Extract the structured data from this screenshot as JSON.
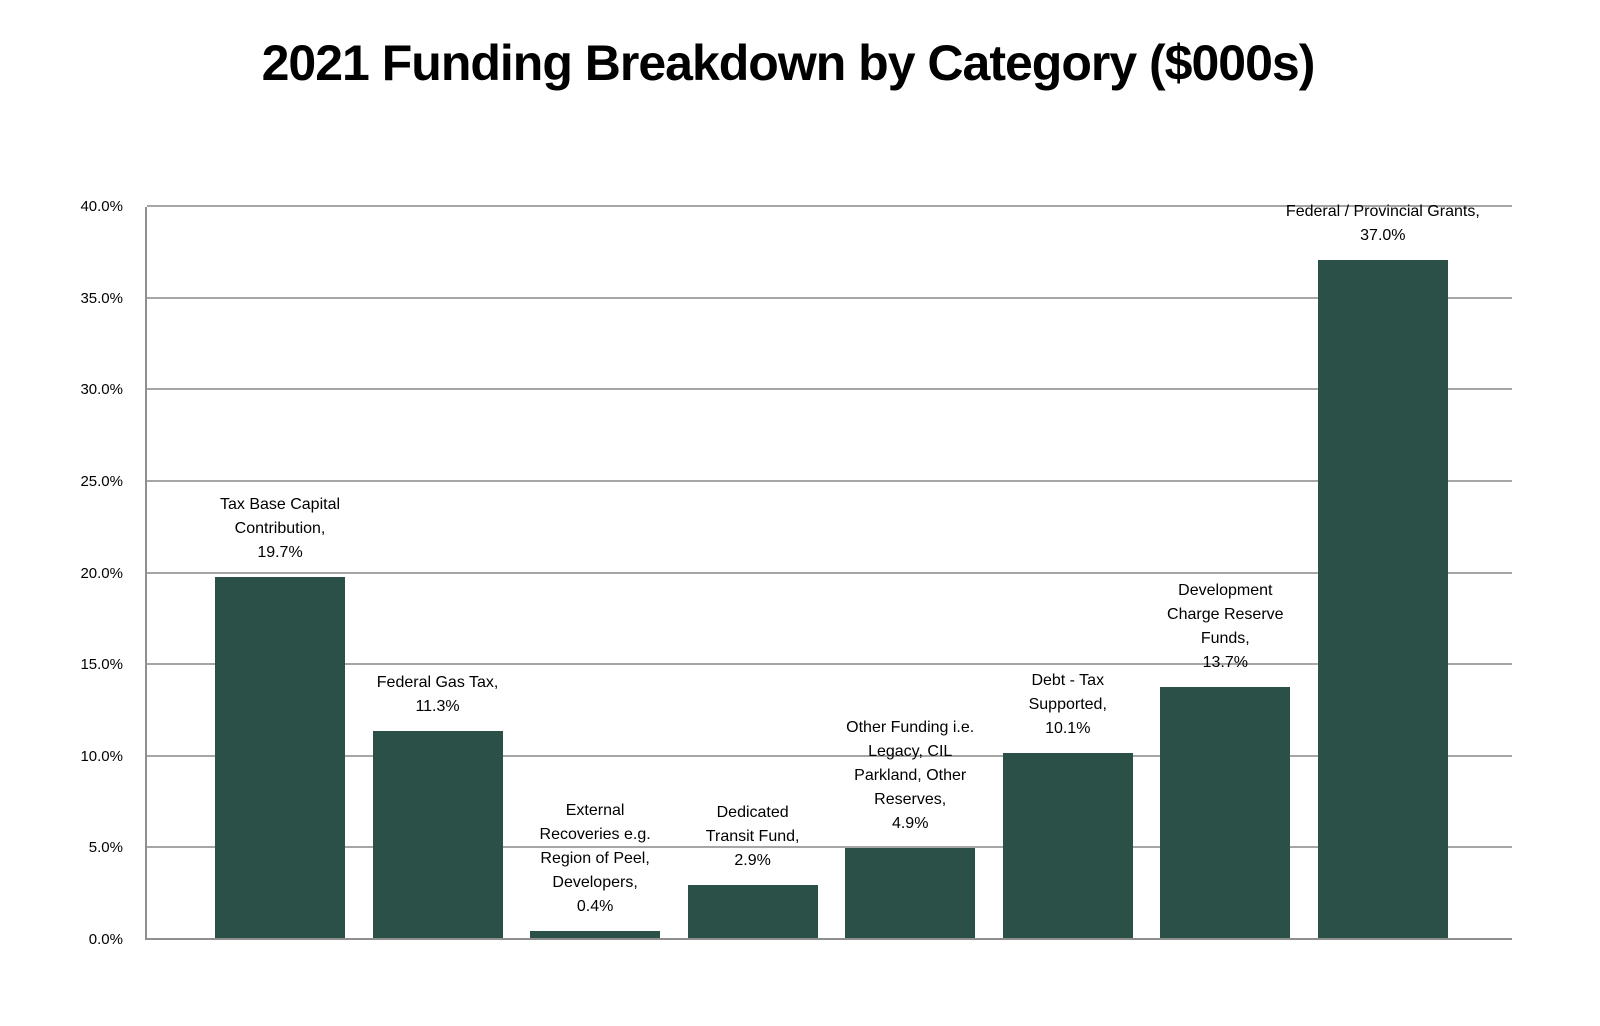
{
  "header": {
    "title": "2021 Funding Breakdown by Category ($000s)"
  },
  "colors": {
    "bar_fill": "#2A5048",
    "gridline": "#A6A6A6",
    "axis_line": "#8F8F8F",
    "text": "#000000",
    "background": "#FFFFFF"
  },
  "chart_data": {
    "type": "bar",
    "title": "2021 Funding Breakdown by Category ($000s)",
    "unit": "percent of total funding",
    "categories": [
      "Tax Base Capital Contribution",
      "Federal Gas Tax",
      "External Recoveries e.g. Region of Peel, Developers",
      "Dedicated Transit Fund",
      "Other Funding i.e. Legacy, CIL Parkland, Other Reserves",
      "Debt - Tax Supported",
      "Development Charge Reserve Funds",
      "Federal / Provincial Grants"
    ],
    "values": [
      19.7,
      11.3,
      0.4,
      2.9,
      4.9,
      10.1,
      13.7,
      37.0
    ],
    "data_labels": [
      {
        "value_label": "19.7%",
        "lines": [
          "Tax Base Capital",
          "Contribution,",
          "19.7%"
        ]
      },
      {
        "value_label": "11.3%",
        "lines": [
          "Federal Gas Tax,",
          "11.3%"
        ]
      },
      {
        "value_label": "0.4%",
        "lines": [
          "External",
          "Recoveries e.g.",
          "Region of Peel,",
          "Developers,",
          "0.4%"
        ]
      },
      {
        "value_label": "2.9%",
        "lines": [
          "Dedicated",
          "Transit Fund,",
          "2.9%"
        ]
      },
      {
        "value_label": "4.9%",
        "lines": [
          "Other Funding i.e.",
          "Legacy, CIL",
          "Parkland, Other",
          "Reserves,",
          "4.9%"
        ]
      },
      {
        "value_label": "10.1%",
        "lines": [
          "Debt - Tax",
          "Supported,",
          "10.1%"
        ]
      },
      {
        "value_label": "13.7%",
        "lines": [
          "Development",
          "Charge Reserve",
          "Funds,",
          "13.7%"
        ]
      },
      {
        "value_label": "37.0%",
        "lines": [
          "Federal / Provincial Grants,",
          "37.0%"
        ]
      }
    ],
    "xlabel": "",
    "ylabel": "",
    "ylim": [
      0,
      40
    ],
    "ytick_step": 5,
    "ytick_labels": [
      "40.0%",
      "35.0%",
      "30.0%",
      "25.0%",
      "20.0%",
      "15.0%",
      "10.0%",
      "5.0%",
      "0.0%"
    ],
    "grid": true,
    "legend": false,
    "bar_color": "#2A5048"
  }
}
